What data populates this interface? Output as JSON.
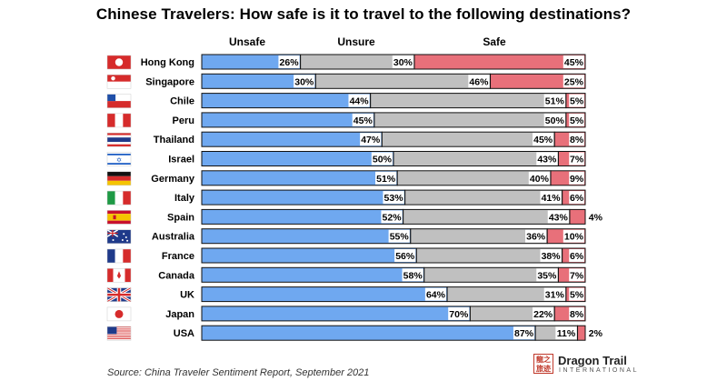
{
  "title": "Chinese Travelers: How safe is it to travel to the following destinations?",
  "source": "Source: China Traveler Sentiment Report, September 2021",
  "logo": {
    "badge": "龍之旅迹",
    "name": "Dragon Trail",
    "sub": "INTERNATIONAL"
  },
  "colors": {
    "unsafe": "#6fa8f0",
    "unsure": "#c0c0c0",
    "safe": "#e8707a",
    "outline": "#111111"
  },
  "chart_data": {
    "type": "bar",
    "stacked": true,
    "orientation": "horizontal",
    "title": "Chinese Travelers: How safe is it to travel to the following destinations?",
    "categories": [
      "Hong Kong",
      "Singapore",
      "Chile",
      "Peru",
      "Thailand",
      "Israel",
      "Germany",
      "Italy",
      "Spain",
      "Australia",
      "France",
      "Canada",
      "UK",
      "Japan",
      "USA"
    ],
    "series": [
      {
        "name": "Unsafe",
        "values": [
          26,
          30,
          44,
          45,
          47,
          50,
          51,
          53,
          52,
          55,
          56,
          58,
          64,
          70,
          87
        ]
      },
      {
        "name": "Unsure",
        "values": [
          30,
          46,
          51,
          50,
          45,
          43,
          40,
          41,
          43,
          36,
          38,
          35,
          31,
          22,
          11
        ]
      },
      {
        "name": "Safe",
        "values": [
          45,
          25,
          5,
          5,
          8,
          7,
          9,
          6,
          4,
          10,
          6,
          7,
          5,
          8,
          2
        ]
      }
    ],
    "value_suffix": "%",
    "flags": [
      "hong-kong-flag",
      "singapore-flag",
      "chile-flag",
      "peru-flag",
      "thailand-flag",
      "israel-flag",
      "germany-flag",
      "italy-flag",
      "spain-flag",
      "australia-flag",
      "france-flag",
      "canada-flag",
      "uk-flag",
      "japan-flag",
      "usa-flag"
    ]
  }
}
